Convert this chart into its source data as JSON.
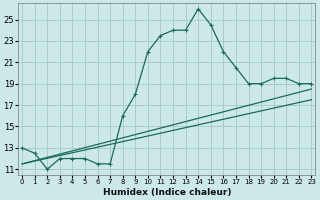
{
  "xlabel": "Humidex (Indice chaleur)",
  "bg_color": "#cce8e8",
  "grid_color": "#aacccc",
  "line_color": "#1a6b5a",
  "x_ticks": [
    0,
    1,
    2,
    3,
    4,
    5,
    6,
    7,
    8,
    9,
    10,
    11,
    12,
    13,
    14,
    15,
    16,
    17,
    18,
    19,
    20,
    21,
    22,
    23
  ],
  "y_ticks": [
    11,
    13,
    15,
    17,
    19,
    21,
    23,
    25
  ],
  "xlim": [
    -0.3,
    23.3
  ],
  "ylim": [
    10.5,
    26.5
  ],
  "series1_x": [
    0,
    1,
    2,
    3,
    4,
    5,
    6,
    7,
    8,
    9,
    10,
    11,
    12,
    13,
    14,
    15,
    16,
    17,
    18,
    19,
    20,
    21,
    22,
    23
  ],
  "series1_y": [
    13.0,
    12.5,
    11.0,
    12.0,
    12.0,
    12.0,
    11.5,
    11.5,
    16.0,
    18.0,
    22.0,
    23.5,
    24.0,
    24.0,
    26.0,
    24.5,
    22.0,
    20.5,
    19.0,
    19.0,
    19.5,
    19.5,
    19.0,
    19.0
  ],
  "series2_x": [
    0,
    23
  ],
  "series2_y": [
    11.5,
    18.5
  ],
  "series3_x": [
    0,
    23
  ],
  "series3_y": [
    11.5,
    17.5
  ]
}
